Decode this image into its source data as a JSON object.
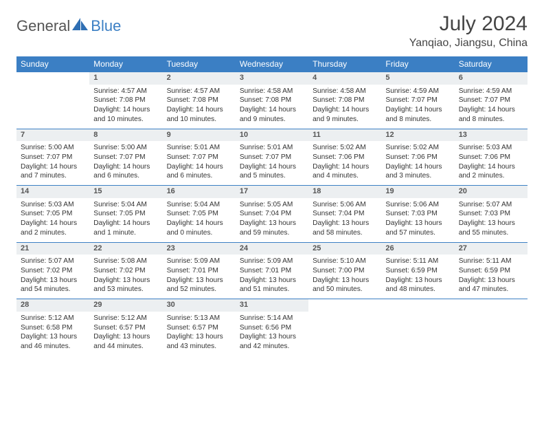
{
  "logo": {
    "text1": "General",
    "text2": "Blue"
  },
  "title": "July 2024",
  "location": "Yanqiao, Jiangsu, China",
  "colors": {
    "headerBlue": "#3b7fc4",
    "dayBarGray": "#eceff1",
    "textDark": "#444",
    "bodyText": "#333"
  },
  "daysOfWeek": [
    "Sunday",
    "Monday",
    "Tuesday",
    "Wednesday",
    "Thursday",
    "Friday",
    "Saturday"
  ],
  "weeks": [
    [
      {
        "num": "",
        "lines": []
      },
      {
        "num": "1",
        "lines": [
          "Sunrise: 4:57 AM",
          "Sunset: 7:08 PM",
          "Daylight: 14 hours and 10 minutes."
        ]
      },
      {
        "num": "2",
        "lines": [
          "Sunrise: 4:57 AM",
          "Sunset: 7:08 PM",
          "Daylight: 14 hours and 10 minutes."
        ]
      },
      {
        "num": "3",
        "lines": [
          "Sunrise: 4:58 AM",
          "Sunset: 7:08 PM",
          "Daylight: 14 hours and 9 minutes."
        ]
      },
      {
        "num": "4",
        "lines": [
          "Sunrise: 4:58 AM",
          "Sunset: 7:08 PM",
          "Daylight: 14 hours and 9 minutes."
        ]
      },
      {
        "num": "5",
        "lines": [
          "Sunrise: 4:59 AM",
          "Sunset: 7:07 PM",
          "Daylight: 14 hours and 8 minutes."
        ]
      },
      {
        "num": "6",
        "lines": [
          "Sunrise: 4:59 AM",
          "Sunset: 7:07 PM",
          "Daylight: 14 hours and 8 minutes."
        ]
      }
    ],
    [
      {
        "num": "7",
        "lines": [
          "Sunrise: 5:00 AM",
          "Sunset: 7:07 PM",
          "Daylight: 14 hours and 7 minutes."
        ]
      },
      {
        "num": "8",
        "lines": [
          "Sunrise: 5:00 AM",
          "Sunset: 7:07 PM",
          "Daylight: 14 hours and 6 minutes."
        ]
      },
      {
        "num": "9",
        "lines": [
          "Sunrise: 5:01 AM",
          "Sunset: 7:07 PM",
          "Daylight: 14 hours and 6 minutes."
        ]
      },
      {
        "num": "10",
        "lines": [
          "Sunrise: 5:01 AM",
          "Sunset: 7:07 PM",
          "Daylight: 14 hours and 5 minutes."
        ]
      },
      {
        "num": "11",
        "lines": [
          "Sunrise: 5:02 AM",
          "Sunset: 7:06 PM",
          "Daylight: 14 hours and 4 minutes."
        ]
      },
      {
        "num": "12",
        "lines": [
          "Sunrise: 5:02 AM",
          "Sunset: 7:06 PM",
          "Daylight: 14 hours and 3 minutes."
        ]
      },
      {
        "num": "13",
        "lines": [
          "Sunrise: 5:03 AM",
          "Sunset: 7:06 PM",
          "Daylight: 14 hours and 2 minutes."
        ]
      }
    ],
    [
      {
        "num": "14",
        "lines": [
          "Sunrise: 5:03 AM",
          "Sunset: 7:05 PM",
          "Daylight: 14 hours and 2 minutes."
        ]
      },
      {
        "num": "15",
        "lines": [
          "Sunrise: 5:04 AM",
          "Sunset: 7:05 PM",
          "Daylight: 14 hours and 1 minute."
        ]
      },
      {
        "num": "16",
        "lines": [
          "Sunrise: 5:04 AM",
          "Sunset: 7:05 PM",
          "Daylight: 14 hours and 0 minutes."
        ]
      },
      {
        "num": "17",
        "lines": [
          "Sunrise: 5:05 AM",
          "Sunset: 7:04 PM",
          "Daylight: 13 hours and 59 minutes."
        ]
      },
      {
        "num": "18",
        "lines": [
          "Sunrise: 5:06 AM",
          "Sunset: 7:04 PM",
          "Daylight: 13 hours and 58 minutes."
        ]
      },
      {
        "num": "19",
        "lines": [
          "Sunrise: 5:06 AM",
          "Sunset: 7:03 PM",
          "Daylight: 13 hours and 57 minutes."
        ]
      },
      {
        "num": "20",
        "lines": [
          "Sunrise: 5:07 AM",
          "Sunset: 7:03 PM",
          "Daylight: 13 hours and 55 minutes."
        ]
      }
    ],
    [
      {
        "num": "21",
        "lines": [
          "Sunrise: 5:07 AM",
          "Sunset: 7:02 PM",
          "Daylight: 13 hours and 54 minutes."
        ]
      },
      {
        "num": "22",
        "lines": [
          "Sunrise: 5:08 AM",
          "Sunset: 7:02 PM",
          "Daylight: 13 hours and 53 minutes."
        ]
      },
      {
        "num": "23",
        "lines": [
          "Sunrise: 5:09 AM",
          "Sunset: 7:01 PM",
          "Daylight: 13 hours and 52 minutes."
        ]
      },
      {
        "num": "24",
        "lines": [
          "Sunrise: 5:09 AM",
          "Sunset: 7:01 PM",
          "Daylight: 13 hours and 51 minutes."
        ]
      },
      {
        "num": "25",
        "lines": [
          "Sunrise: 5:10 AM",
          "Sunset: 7:00 PM",
          "Daylight: 13 hours and 50 minutes."
        ]
      },
      {
        "num": "26",
        "lines": [
          "Sunrise: 5:11 AM",
          "Sunset: 6:59 PM",
          "Daylight: 13 hours and 48 minutes."
        ]
      },
      {
        "num": "27",
        "lines": [
          "Sunrise: 5:11 AM",
          "Sunset: 6:59 PM",
          "Daylight: 13 hours and 47 minutes."
        ]
      }
    ],
    [
      {
        "num": "28",
        "lines": [
          "Sunrise: 5:12 AM",
          "Sunset: 6:58 PM",
          "Daylight: 13 hours and 46 minutes."
        ]
      },
      {
        "num": "29",
        "lines": [
          "Sunrise: 5:12 AM",
          "Sunset: 6:57 PM",
          "Daylight: 13 hours and 44 minutes."
        ]
      },
      {
        "num": "30",
        "lines": [
          "Sunrise: 5:13 AM",
          "Sunset: 6:57 PM",
          "Daylight: 13 hours and 43 minutes."
        ]
      },
      {
        "num": "31",
        "lines": [
          "Sunrise: 5:14 AM",
          "Sunset: 6:56 PM",
          "Daylight: 13 hours and 42 minutes."
        ]
      },
      {
        "num": "",
        "lines": []
      },
      {
        "num": "",
        "lines": []
      },
      {
        "num": "",
        "lines": []
      }
    ]
  ]
}
